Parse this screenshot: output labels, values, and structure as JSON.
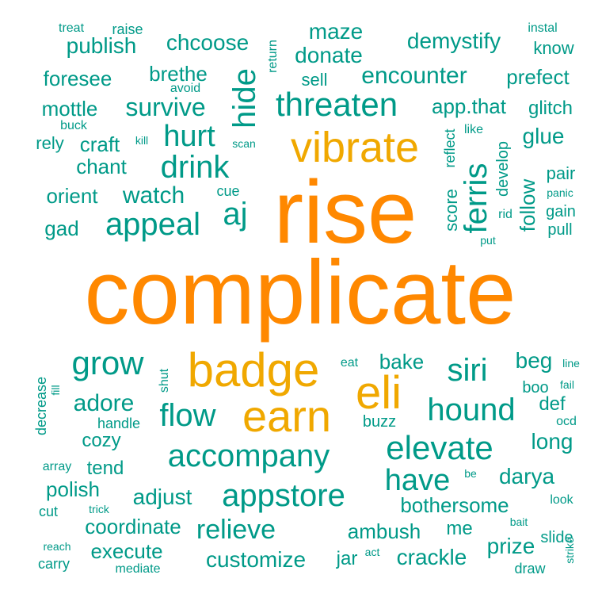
{
  "palette": {
    "teal": "#009a88",
    "orange": "#ff8800",
    "gold": "#f0a800"
  },
  "words": [
    {
      "text": "complicate",
      "color": "orange"
    },
    {
      "text": "rise",
      "color": "orange"
    },
    {
      "text": "vibrate",
      "color": "gold"
    },
    {
      "text": "badge",
      "color": "gold"
    },
    {
      "text": "earn",
      "color": "gold"
    },
    {
      "text": "eli",
      "color": "gold"
    },
    {
      "text": "threaten",
      "color": "teal"
    },
    {
      "text": "accompany",
      "color": "teal"
    },
    {
      "text": "appstore",
      "color": "teal"
    },
    {
      "text": "elevate",
      "color": "teal"
    },
    {
      "text": "hound",
      "color": "teal"
    },
    {
      "text": "appeal",
      "color": "teal"
    },
    {
      "text": "drink",
      "color": "teal"
    },
    {
      "text": "hurt",
      "color": "teal"
    },
    {
      "text": "hide",
      "color": "teal"
    },
    {
      "text": "ferris",
      "color": "teal"
    },
    {
      "text": "grow",
      "color": "teal"
    },
    {
      "text": "flow",
      "color": "teal"
    },
    {
      "text": "siri",
      "color": "teal"
    },
    {
      "text": "have",
      "color": "teal"
    },
    {
      "text": "relieve",
      "color": "teal"
    },
    {
      "text": "aj",
      "color": "teal"
    },
    {
      "text": "encounter",
      "color": "teal"
    },
    {
      "text": "survive",
      "color": "teal"
    },
    {
      "text": "demystify",
      "color": "teal"
    },
    {
      "text": "donate",
      "color": "teal"
    },
    {
      "text": "maze",
      "color": "teal"
    },
    {
      "text": "publish",
      "color": "teal"
    },
    {
      "text": "chcoose",
      "color": "teal"
    },
    {
      "text": "foresee",
      "color": "teal"
    },
    {
      "text": "brethe",
      "color": "teal"
    },
    {
      "text": "mottle",
      "color": "teal"
    },
    {
      "text": "prefect",
      "color": "teal"
    },
    {
      "text": "app.that",
      "color": "teal"
    },
    {
      "text": "glitch",
      "color": "teal"
    },
    {
      "text": "glue",
      "color": "teal"
    },
    {
      "text": "watch",
      "color": "teal"
    },
    {
      "text": "orient",
      "color": "teal"
    },
    {
      "text": "chant",
      "color": "teal"
    },
    {
      "text": "craft",
      "color": "teal"
    },
    {
      "text": "gad",
      "color": "teal"
    },
    {
      "text": "adore",
      "color": "teal"
    },
    {
      "text": "cozy",
      "color": "teal"
    },
    {
      "text": "adjust",
      "color": "teal"
    },
    {
      "text": "polish",
      "color": "teal"
    },
    {
      "text": "coordinate",
      "color": "teal"
    },
    {
      "text": "execute",
      "color": "teal"
    },
    {
      "text": "customize",
      "color": "teal"
    },
    {
      "text": "ambush",
      "color": "teal"
    },
    {
      "text": "crackle",
      "color": "teal"
    },
    {
      "text": "bothersome",
      "color": "teal"
    },
    {
      "text": "darya",
      "color": "teal"
    },
    {
      "text": "prize",
      "color": "teal"
    },
    {
      "text": "long",
      "color": "teal"
    },
    {
      "text": "beg",
      "color": "teal"
    },
    {
      "text": "bake",
      "color": "teal"
    },
    {
      "text": "def",
      "color": "teal"
    },
    {
      "text": "me",
      "color": "teal"
    },
    {
      "text": "jar",
      "color": "teal"
    },
    {
      "text": "tend",
      "color": "teal"
    },
    {
      "text": "follow",
      "color": "teal"
    },
    {
      "text": "sell",
      "color": "teal"
    },
    {
      "text": "know",
      "color": "teal"
    },
    {
      "text": "rely",
      "color": "teal"
    },
    {
      "text": "pair",
      "color": "teal"
    },
    {
      "text": "gain",
      "color": "teal"
    },
    {
      "text": "pull",
      "color": "teal"
    },
    {
      "text": "score",
      "color": "teal"
    },
    {
      "text": "develop",
      "color": "teal"
    },
    {
      "text": "reflect",
      "color": "teal"
    },
    {
      "text": "buzz",
      "color": "teal"
    },
    {
      "text": "boo",
      "color": "teal"
    },
    {
      "text": "slide",
      "color": "teal"
    },
    {
      "text": "draw",
      "color": "teal"
    },
    {
      "text": "cue",
      "color": "teal"
    },
    {
      "text": "handle",
      "color": "teal"
    },
    {
      "text": "decrease",
      "color": "teal"
    },
    {
      "text": "shut",
      "color": "teal"
    },
    {
      "text": "return",
      "color": "teal"
    },
    {
      "text": "instal",
      "color": "teal"
    },
    {
      "text": "treat",
      "color": "teal"
    },
    {
      "text": "raise",
      "color": "teal"
    },
    {
      "text": "avoid",
      "color": "teal"
    },
    {
      "text": "buck",
      "color": "teal"
    },
    {
      "text": "kill",
      "color": "teal"
    },
    {
      "text": "scan",
      "color": "teal"
    },
    {
      "text": "like",
      "color": "teal"
    },
    {
      "text": "panic",
      "color": "teal"
    },
    {
      "text": "rid",
      "color": "teal"
    },
    {
      "text": "put",
      "color": "teal"
    },
    {
      "text": "eat",
      "color": "teal"
    },
    {
      "text": "line",
      "color": "teal"
    },
    {
      "text": "fail",
      "color": "teal"
    },
    {
      "text": "ocd",
      "color": "teal"
    },
    {
      "text": "fill",
      "color": "teal"
    },
    {
      "text": "array",
      "color": "teal"
    },
    {
      "text": "cut",
      "color": "teal"
    },
    {
      "text": "trick",
      "color": "teal"
    },
    {
      "text": "be",
      "color": "teal"
    },
    {
      "text": "look",
      "color": "teal"
    },
    {
      "text": "bait",
      "color": "teal"
    },
    {
      "text": "reach",
      "color": "teal"
    },
    {
      "text": "carry",
      "color": "teal"
    },
    {
      "text": "mediate",
      "color": "teal"
    },
    {
      "text": "act",
      "color": "teal"
    },
    {
      "text": "strike",
      "color": "teal"
    }
  ]
}
